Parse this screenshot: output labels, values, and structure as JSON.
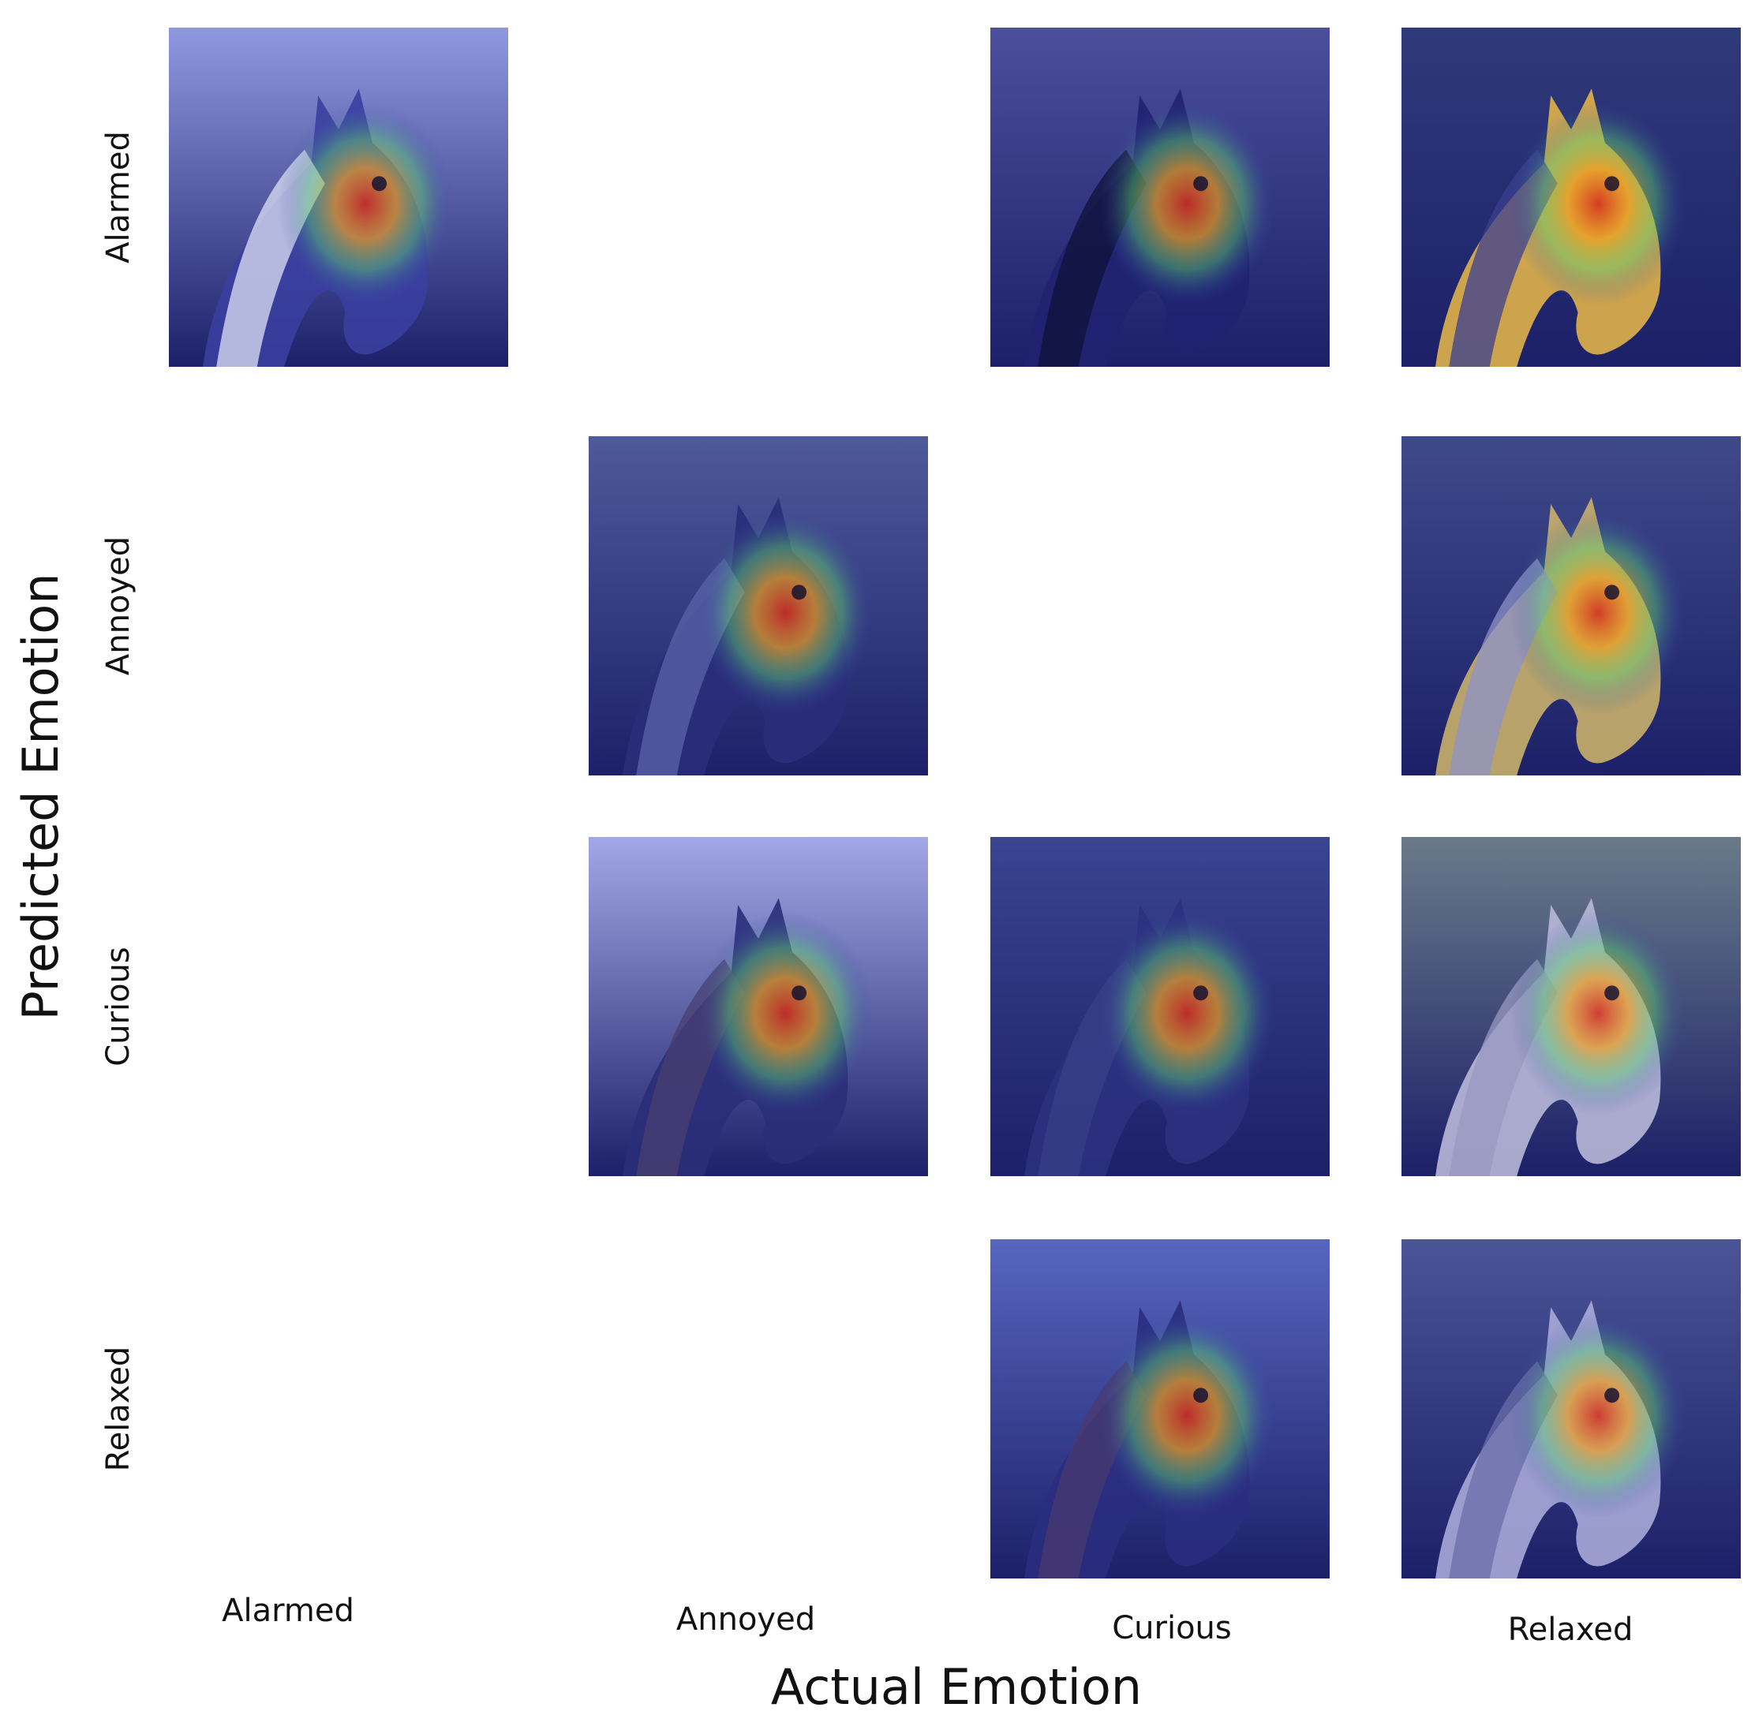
{
  "axes": {
    "x_title": "Actual Emotion",
    "y_title": "Predicted Emotion"
  },
  "rows": [
    "Alarmed",
    "Annoyed",
    "Curious",
    "Relaxed"
  ],
  "columns": [
    "Alarmed",
    "Annoyed",
    "Curious",
    "Relaxed"
  ],
  "cells": [
    {
      "predicted": "Alarmed",
      "actual": "Alarmed",
      "bg": "#8f98e0",
      "coat": "#3a3fa0",
      "mane": "#dfe2f4"
    },
    {
      "predicted": "Alarmed",
      "actual": "Curious",
      "bg": "#4b4f9c",
      "coat": "#1f2270",
      "mane": "#10123a"
    },
    {
      "predicted": "Alarmed",
      "actual": "Relaxed",
      "bg": "#2f3a7a",
      "coat": "#e0b34a",
      "mane": "#3b3f8f"
    },
    {
      "predicted": "Annoyed",
      "actual": "Annoyed",
      "bg": "#4f5a9a",
      "coat": "#2a2e7a",
      "mane": "#5b63a8"
    },
    {
      "predicted": "Annoyed",
      "actual": "Relaxed",
      "bg": "#3f4a8a",
      "coat": "#c8b06a",
      "mane": "#8f92c8"
    },
    {
      "predicted": "Curious",
      "actual": "Annoyed",
      "bg": "#a2a8e6",
      "coat": "#2a2d78",
      "mane": "#4a3f70"
    },
    {
      "predicted": "Curious",
      "actual": "Curious",
      "bg": "#3a4490",
      "coat": "#2c3180",
      "mane": "#3a3f88"
    },
    {
      "predicted": "Curious",
      "actual": "Relaxed",
      "bg": "#6a7a8a",
      "coat": "#b8b8d8",
      "mane": "#9a9ac0"
    },
    {
      "predicted": "Relaxed",
      "actual": "Curious",
      "bg": "#5866c0",
      "coat": "#2a2e80",
      "mane": "#4a3a70"
    },
    {
      "predicted": "Relaxed",
      "actual": "Relaxed",
      "bg": "#4a5496",
      "coat": "#a8aad8",
      "mane": "#6a6ea8"
    }
  ]
}
